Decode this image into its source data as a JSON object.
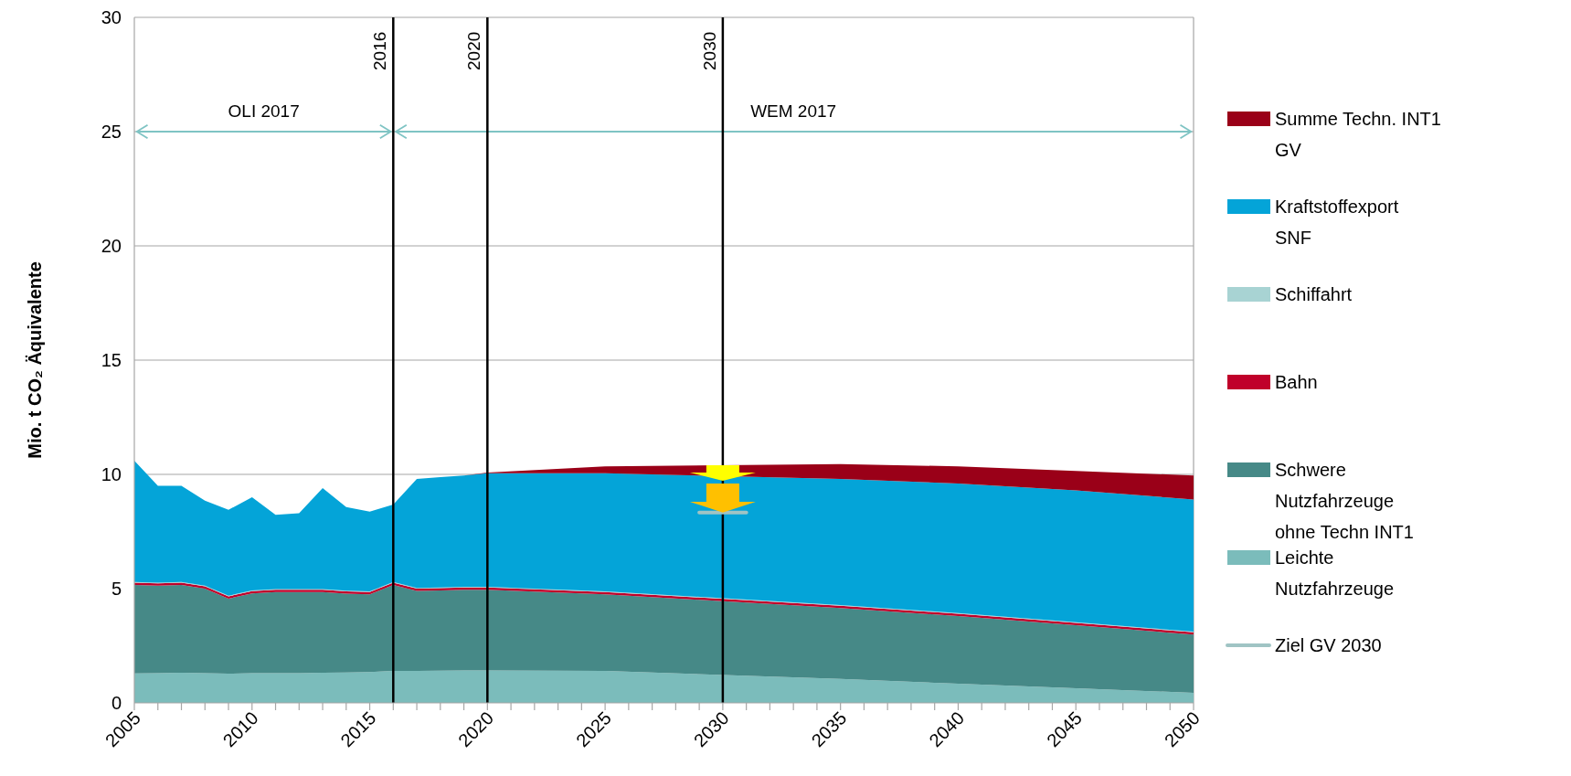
{
  "chart_data": {
    "type": "area",
    "stacked": true,
    "ylabel": "Mio. t CO₂ Äquivalente",
    "x": [
      2005,
      2006,
      2007,
      2008,
      2009,
      2010,
      2011,
      2012,
      2013,
      2014,
      2015,
      2016,
      2017,
      2018,
      2019,
      2020,
      2025,
      2035,
      2040,
      2045,
      2050
    ],
    "series": [
      {
        "name": "Leichte Nutzfahrzeuge",
        "color": "#7bbcbb",
        "values": [
          1.29,
          1.3,
          1.32,
          1.3,
          1.28,
          1.3,
          1.3,
          1.3,
          1.32,
          1.33,
          1.35,
          1.4,
          1.4,
          1.41,
          1.42,
          1.42,
          1.4,
          1.05,
          0.84,
          0.64,
          0.44
        ]
      },
      {
        "name": "Schwere Nutzfahrzeuge ohne Techn INT1",
        "color": "#468987",
        "values": [
          3.87,
          3.83,
          3.84,
          3.7,
          3.28,
          3.49,
          3.55,
          3.55,
          3.53,
          3.45,
          3.4,
          3.76,
          3.5,
          3.51,
          3.53,
          3.53,
          3.35,
          3.1,
          2.96,
          2.76,
          2.55
        ]
      },
      {
        "name": "Bahn",
        "color": "#c0002a",
        "values": [
          0.1,
          0.1,
          0.1,
          0.1,
          0.1,
          0.1,
          0.1,
          0.1,
          0.1,
          0.1,
          0.1,
          0.1,
          0.1,
          0.1,
          0.1,
          0.1,
          0.1,
          0.1,
          0.1,
          0.1,
          0.1
        ]
      },
      {
        "name": "Schiffahrt",
        "color": "#a8d3d3",
        "values": [
          0.03,
          0.03,
          0.03,
          0.03,
          0.03,
          0.03,
          0.03,
          0.03,
          0.03,
          0.03,
          0.03,
          0.03,
          0.03,
          0.03,
          0.03,
          0.03,
          0.03,
          0.03,
          0.03,
          0.03,
          0.03
        ]
      },
      {
        "name": "Kraftstoffexport SNF",
        "color": "#04a4d8",
        "values": [
          5.31,
          4.24,
          4.21,
          3.72,
          3.76,
          4.08,
          3.25,
          3.32,
          4.42,
          3.66,
          3.49,
          3.39,
          4.77,
          4.83,
          4.87,
          4.97,
          5.17,
          5.52,
          5.67,
          5.77,
          5.78
        ]
      },
      {
        "name": "Summe Techn. INT1 GV",
        "color": "#9a0018",
        "values": [
          0,
          0,
          0,
          0,
          0,
          0,
          0,
          0,
          0,
          0,
          0,
          0,
          0,
          0,
          0,
          0.03,
          0.3,
          0.65,
          0.75,
          0.85,
          1.05
        ]
      },
      {
        "name": "Ziel GV 2030",
        "type": "line",
        "color": "#a0c4c4",
        "x": [
          2029,
          2031
        ],
        "values": [
          8.33,
          8.33
        ]
      }
    ],
    "xlim": [
      2005,
      2050
    ],
    "xticks": [
      2005,
      {
        "value": 2006,
        "label": null
      },
      {
        "value": 2007,
        "label": null
      },
      {
        "value": 2008,
        "label": null
      },
      {
        "value": 2009,
        "label": null
      },
      2010,
      {
        "value": 2011,
        "label": null
      },
      {
        "value": 2012,
        "label": null
      },
      {
        "value": 2013,
        "label": null
      },
      {
        "value": 2014,
        "label": null
      },
      2015,
      {
        "value": 2016,
        "label": null
      },
      {
        "value": 2017,
        "label": null
      },
      {
        "value": 2018,
        "label": null
      },
      {
        "value": 2019,
        "label": null
      },
      2020,
      {
        "value": 2021,
        "label": null
      },
      {
        "value": 2022,
        "label": null
      },
      {
        "value": 2023,
        "label": null
      },
      {
        "value": 2024,
        "label": null
      },
      2025,
      {
        "value": 2026,
        "label": null
      },
      {
        "value": 2027,
        "label": null
      },
      {
        "value": 2028,
        "label": null
      },
      {
        "value": 2029,
        "label": null
      },
      2030,
      {
        "value": 2031,
        "label": null
      },
      {
        "value": 2032,
        "label": null
      },
      {
        "value": 2033,
        "label": null
      },
      {
        "value": 2034,
        "label": null
      },
      2035,
      {
        "value": 2036,
        "label": null
      },
      {
        "value": 2037,
        "label": null
      },
      {
        "value": 2038,
        "label": null
      },
      {
        "value": 2039,
        "label": null
      },
      2040,
      {
        "value": 2041,
        "label": null
      },
      {
        "value": 2042,
        "label": null
      },
      {
        "value": 2043,
        "label": null
      },
      {
        "value": 2044,
        "label": null
      },
      2045,
      {
        "value": 2046,
        "label": null
      },
      {
        "value": 2047,
        "label": null
      },
      {
        "value": 2048,
        "label": null
      },
      {
        "value": 2049,
        "label": null
      },
      2050
    ],
    "ylim": [
      0,
      30
    ],
    "yticks": [
      0,
      5,
      10,
      15,
      20,
      25,
      30
    ],
    "grid": "y",
    "legend": "right",
    "ref_lines": [
      {
        "axis": "x",
        "value": 2016,
        "label": "2016",
        "color": "#000000"
      },
      {
        "axis": "x",
        "value": 2020,
        "label": "2020",
        "color": "#000000"
      },
      {
        "axis": "x",
        "value": 2030,
        "label": "2030",
        "color": "#000000"
      }
    ],
    "annotations": [
      "OLI 2017",
      "WEM 2017"
    ]
  }
}
